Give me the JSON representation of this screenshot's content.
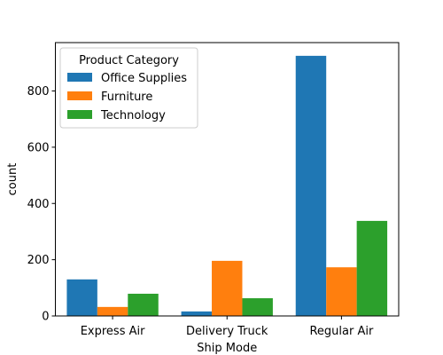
{
  "chart_data": {
    "type": "bar",
    "title": "",
    "xlabel": "Ship Mode",
    "ylabel": "count",
    "categories": [
      "Express Air",
      "Delivery Truck",
      "Regular Air"
    ],
    "series": [
      {
        "name": "Office Supplies",
        "color": "#1f77b4",
        "values": [
          130,
          16,
          925
        ]
      },
      {
        "name": "Furniture",
        "color": "#ff7f0e",
        "values": [
          32,
          196,
          173
        ]
      },
      {
        "name": "Technology",
        "color": "#2ca02c",
        "values": [
          79,
          63,
          338
        ]
      }
    ],
    "ylim": [
      0,
      972
    ],
    "yticks": [
      0,
      200,
      400,
      600,
      800
    ],
    "grid": false,
    "legend": {
      "title": "Product Category",
      "placement": "top-left"
    }
  }
}
